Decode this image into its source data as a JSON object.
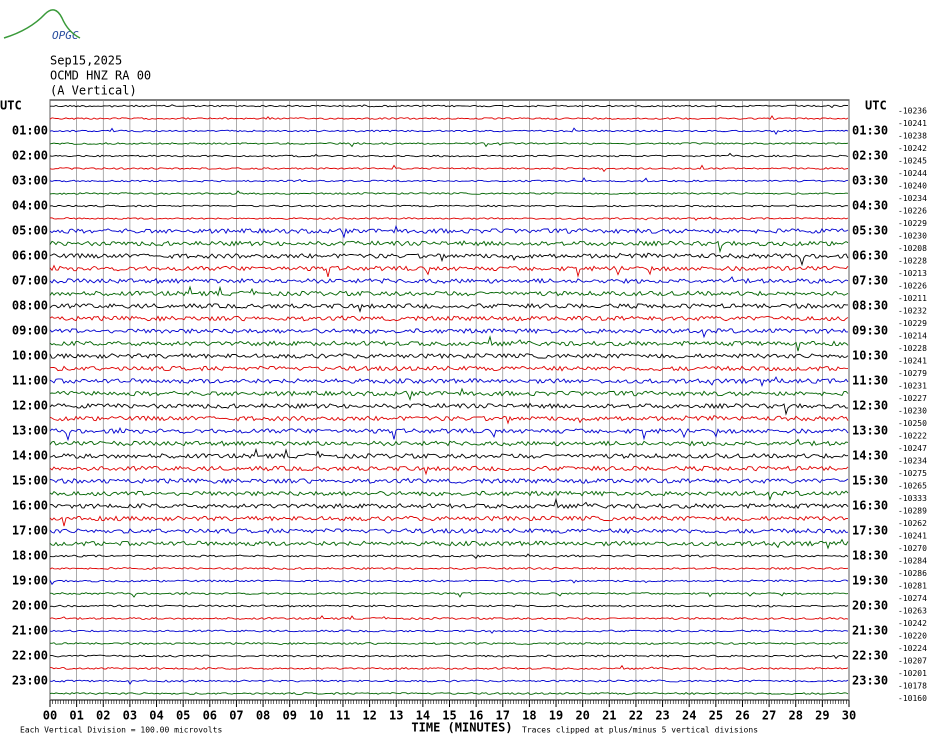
{
  "header": {
    "logo": "OPGC",
    "date": "Sep15,2025",
    "station": "OCMD HNZ RA 00",
    "component": "(A Vertical)"
  },
  "left_axis": {
    "title": "UTC",
    "labels": [
      "01:00",
      "02:00",
      "03:00",
      "04:00",
      "05:00",
      "06:00",
      "07:00",
      "08:00",
      "09:00",
      "10:00",
      "11:00",
      "12:00",
      "13:00",
      "14:00",
      "15:00",
      "16:00",
      "17:00",
      "18:00",
      "19:00",
      "20:00",
      "21:00",
      "22:00",
      "23:00"
    ]
  },
  "right_axis": {
    "title": "UTC",
    "labels": [
      "01:30",
      "02:30",
      "03:30",
      "04:30",
      "05:30",
      "06:30",
      "07:30",
      "08:30",
      "09:30",
      "10:30",
      "11:30",
      "12:30",
      "13:30",
      "14:30",
      "15:30",
      "16:30",
      "17:30",
      "18:30",
      "19:30",
      "20:30",
      "21:30",
      "22:30",
      "23:30"
    ]
  },
  "trace_offsets": [
    "-10236",
    "-10241",
    "-10238",
    "-10242",
    "-10245",
    "-10244",
    "-10240",
    "-10234",
    "-10226",
    "-10229",
    "-10230",
    "-10208",
    "-10228",
    "-10213",
    "-10226",
    "-10211",
    "-10232",
    "-10229",
    "-10214",
    "-10228",
    "-10241",
    "-10279",
    "-10231",
    "-10227",
    "-10230",
    "-10250",
    "-10222",
    "-10247",
    "-10234",
    "-10275",
    "-10265",
    "-10333",
    "-10289",
    "-10262",
    "-10241",
    "-10270",
    "-10284",
    "-10286",
    "-10281",
    "-10274",
    "-10263",
    "-10242",
    "-10220",
    "-10224",
    "-10207",
    "-10201",
    "-10178",
    "-10160"
  ],
  "x_axis": {
    "title": "TIME (MINUTES)",
    "ticks": [
      "00",
      "01",
      "02",
      "03",
      "04",
      "05",
      "06",
      "07",
      "08",
      "09",
      "10",
      "11",
      "12",
      "13",
      "14",
      "15",
      "16",
      "17",
      "18",
      "19",
      "20",
      "21",
      "22",
      "23",
      "24",
      "25",
      "26",
      "27",
      "28",
      "29",
      "30"
    ]
  },
  "footer": {
    "scale": "Each Vertical Division =  100.00 microvolts",
    "clip": "Traces clipped at plus/minus 5 vertical divisions"
  }
}
